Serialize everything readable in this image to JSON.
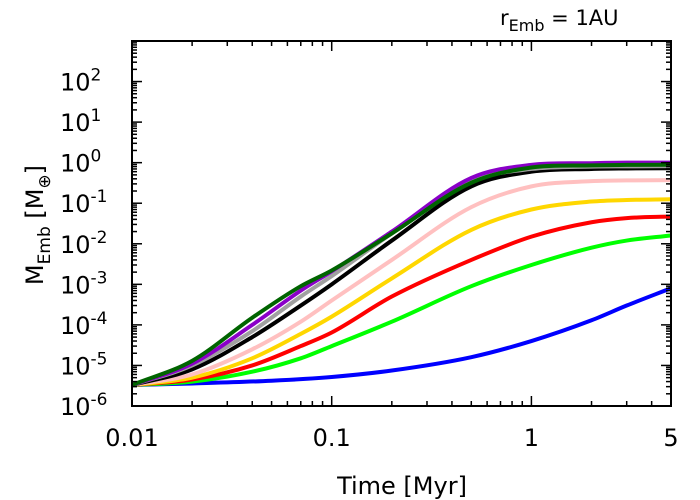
{
  "chart_data": {
    "type": "line",
    "title": "r",
    "title_sub": "Emb",
    "title_rest": " = 1AU",
    "xlabel": "Time [Myr]",
    "ylabel_main": "M",
    "ylabel_sub": "Emb",
    "ylabel_unit_open": " [M",
    "ylabel_unit_sub": "⊕",
    "ylabel_unit_close": "]",
    "xscale": "log",
    "yscale": "log",
    "xlim": [
      0.01,
      5
    ],
    "ylim": [
      1e-06,
      1000
    ],
    "x_ticks": [
      {
        "value": 0.01,
        "label": "0.01"
      },
      {
        "value": 0.1,
        "label": "0.1"
      },
      {
        "value": 1,
        "label": "1"
      },
      {
        "value": 5,
        "label": "5"
      }
    ],
    "y_ticks": [
      {
        "value": 1e-06,
        "base": "10",
        "exp": "-6"
      },
      {
        "value": 1e-05,
        "base": "10",
        "exp": "-5"
      },
      {
        "value": 0.0001,
        "base": "10",
        "exp": "-4"
      },
      {
        "value": 0.001,
        "base": "10",
        "exp": "-3"
      },
      {
        "value": 0.01,
        "base": "10",
        "exp": "-2"
      },
      {
        "value": 0.1,
        "base": "10",
        "exp": "-1"
      },
      {
        "value": 1,
        "base": "10",
        "exp": "0"
      },
      {
        "value": 10,
        "base": "10",
        "exp": "1"
      },
      {
        "value": 100,
        "base": "10",
        "exp": "2"
      }
    ],
    "series": [
      {
        "name": "blue",
        "color": "#0000ff",
        "x": [
          0.01,
          0.02,
          0.05,
          0.1,
          0.2,
          0.5,
          1,
          2,
          3,
          5
        ],
        "y": [
          3.3e-06,
          3.6e-06,
          4.2e-06,
          5.2e-06,
          7.5e-06,
          1.6e-05,
          4e-05,
          0.00013,
          0.0003,
          0.0008
        ]
      },
      {
        "name": "green",
        "color": "#00ff00",
        "x": [
          0.01,
          0.02,
          0.04,
          0.07,
          0.1,
          0.2,
          0.5,
          1,
          2,
          3,
          5
        ],
        "y": [
          3.3e-06,
          4e-06,
          7e-06,
          1.5e-05,
          3e-05,
          0.00012,
          0.0009,
          0.003,
          0.008,
          0.012,
          0.016
        ]
      },
      {
        "name": "red",
        "color": "#ff0000",
        "x": [
          0.01,
          0.02,
          0.04,
          0.07,
          0.1,
          0.2,
          0.5,
          1,
          2,
          3,
          5
        ],
        "y": [
          3.3e-06,
          4.5e-06,
          1e-05,
          3e-05,
          6.5e-05,
          0.0005,
          0.004,
          0.015,
          0.034,
          0.043,
          0.047
        ]
      },
      {
        "name": "gold",
        "color": "#ffd700",
        "x": [
          0.01,
          0.02,
          0.04,
          0.07,
          0.1,
          0.2,
          0.5,
          1,
          2,
          3,
          5
        ],
        "y": [
          3.3e-06,
          5e-06,
          1.5e-05,
          6e-05,
          0.00016,
          0.0014,
          0.022,
          0.07,
          0.11,
          0.12,
          0.125
        ]
      },
      {
        "name": "pink",
        "color": "#ffc0c0",
        "x": [
          0.01,
          0.02,
          0.04,
          0.07,
          0.1,
          0.2,
          0.5,
          1,
          2,
          3,
          5
        ],
        "y": [
          3.3e-06,
          6e-06,
          2.5e-05,
          0.00012,
          0.0004,
          0.004,
          0.08,
          0.26,
          0.35,
          0.365,
          0.37
        ]
      },
      {
        "name": "black",
        "color": "#000000",
        "x": [
          0.01,
          0.02,
          0.04,
          0.07,
          0.1,
          0.2,
          0.5,
          1,
          2,
          3,
          5
        ],
        "y": [
          3.3e-06,
          8e-06,
          5e-05,
          0.0003,
          0.001,
          0.012,
          0.26,
          0.6,
          0.7,
          0.72,
          0.73
        ]
      },
      {
        "name": "grey",
        "color": "#a0a0a0",
        "x": [
          0.01,
          0.02,
          0.04,
          0.07,
          0.1,
          0.2,
          0.5,
          1,
          2,
          3,
          5
        ],
        "y": [
          3.3e-06,
          1e-05,
          7e-05,
          0.0005,
          0.0016,
          0.018,
          0.35,
          0.7,
          0.8,
          0.81,
          0.82
        ]
      },
      {
        "name": "purple",
        "color": "#8a00c8",
        "x": [
          0.01,
          0.02,
          0.04,
          0.07,
          0.1,
          0.2,
          0.5,
          1,
          2,
          3,
          5
        ],
        "y": [
          3.3e-06,
          1.1e-05,
          0.0001,
          0.0007,
          0.0021,
          0.02,
          0.42,
          0.88,
          0.97,
          1.0,
          1.0
        ]
      },
      {
        "name": "darkgreen",
        "color": "#006400",
        "x": [
          0.01,
          0.02,
          0.04,
          0.07,
          0.1,
          0.2,
          0.5,
          1,
          2,
          3,
          5
        ],
        "y": [
          3.3e-06,
          1.3e-05,
          0.00015,
          0.0009,
          0.0022,
          0.018,
          0.32,
          0.76,
          0.86,
          0.88,
          0.89
        ]
      }
    ]
  }
}
